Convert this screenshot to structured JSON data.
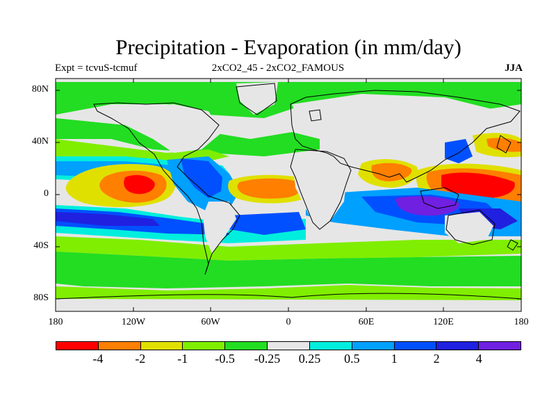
{
  "title": "Precipitation - Evaporation (in mm/day)",
  "subtitle_left": "Expt = tcvuS-tcmuf",
  "subtitle_center": "2xCO2_45 - 2xCO2_FAMOUS",
  "subtitle_right": "JJA",
  "lat_labels": [
    "80N",
    "40N",
    "0",
    "40S",
    "80S"
  ],
  "lon_labels": [
    "180",
    "120W",
    "60W",
    "0",
    "60E",
    "120E",
    "180"
  ],
  "colorbar": {
    "colors": [
      "#ff0000",
      "#ff7f00",
      "#e0e000",
      "#80ee00",
      "#22dd22",
      "#e6e6e6",
      "#00eedd",
      "#00a0ff",
      "#0050ff",
      "#2020e0",
      "#7020e0"
    ],
    "labels": [
      "-4",
      "-2",
      "-1",
      "-0.5",
      "-0.25",
      "0.25",
      "0.5",
      "1",
      "2",
      "4"
    ]
  }
}
